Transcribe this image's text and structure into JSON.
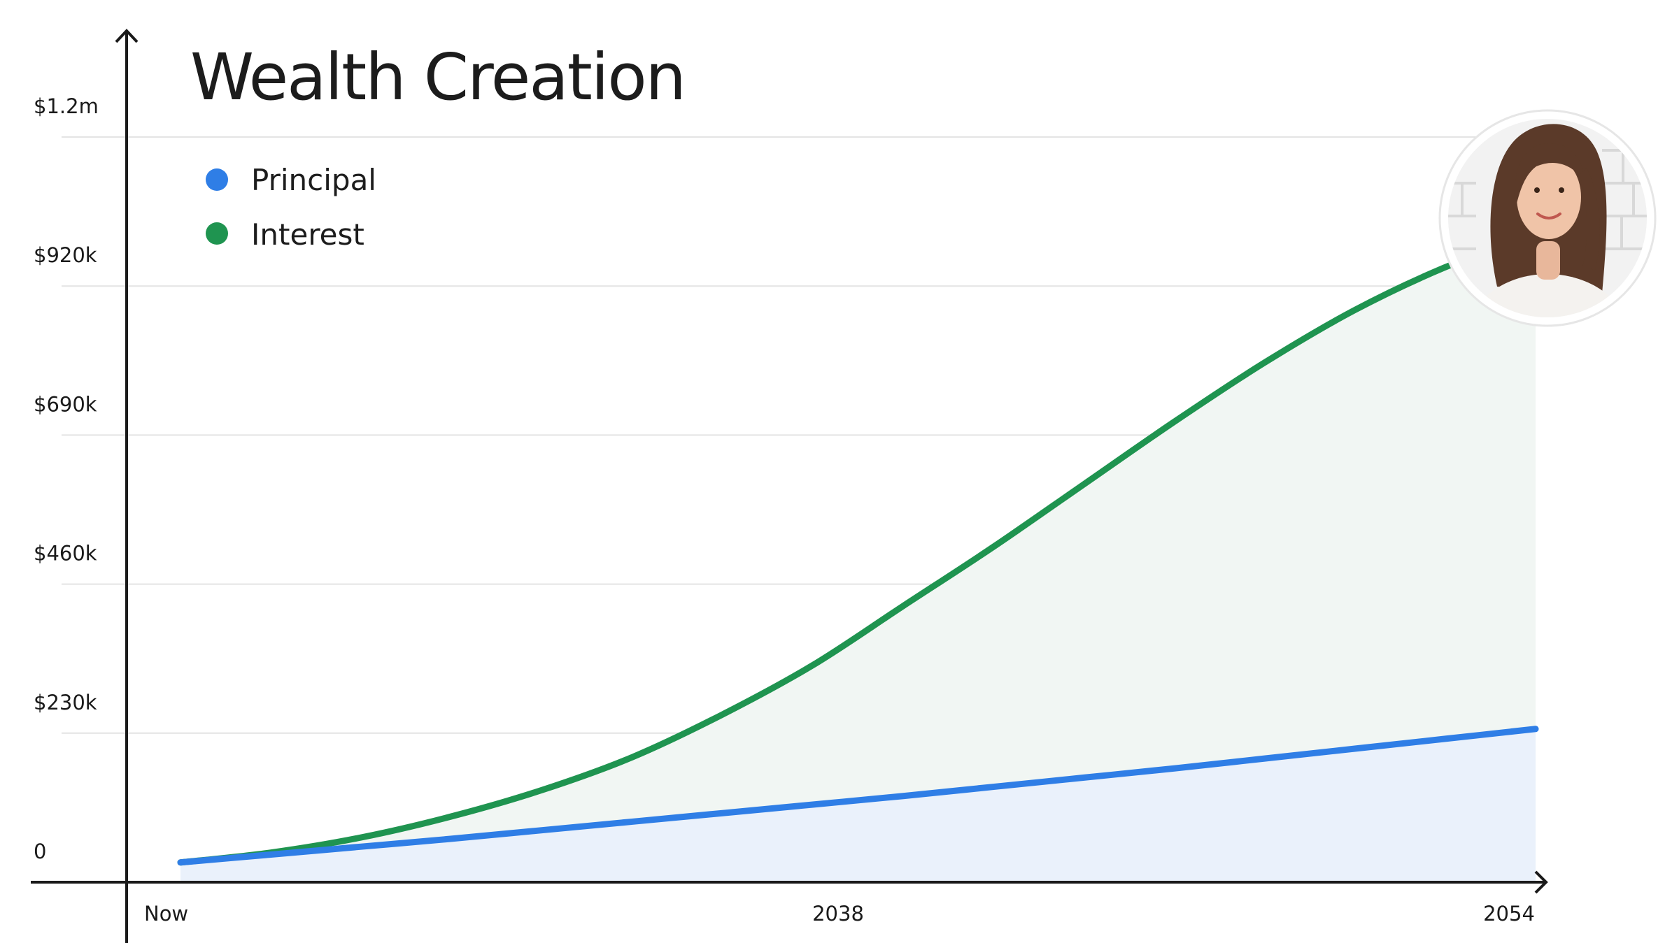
{
  "chart_data": {
    "type": "area",
    "title": "Wealth Creation",
    "xlabel": "",
    "ylabel": "",
    "x_ticks": [
      "Now",
      "2038",
      "2054"
    ],
    "y_ticks": [
      "0",
      "$230k",
      "$460k",
      "$690k",
      "$920k",
      "$1.2m"
    ],
    "x": [
      2024,
      2026,
      2028,
      2030,
      2032,
      2034,
      2036,
      2038,
      2040,
      2042,
      2044,
      2046,
      2048,
      2050,
      2052,
      2054
    ],
    "xlim": [
      2024,
      2054
    ],
    "ylim": [
      0,
      1150000
    ],
    "series": [
      {
        "name": "Principal",
        "color": "#2f7ee6",
        "fill": "#eaf1fb",
        "values": [
          30000,
          42000,
          54000,
          66000,
          79000,
          92000,
          105000,
          118000,
          131000,
          145000,
          159000,
          173000,
          188000,
          203000,
          218000,
          233000
        ]
      },
      {
        "name": "Interest",
        "color": "#1f9450",
        "fill": "#f1f6f3",
        "values": [
          30000,
          45000,
          68000,
          100000,
          140000,
          190000,
          255000,
          330000,
          420000,
          510000,
          605000,
          700000,
          790000,
          870000,
          935000,
          985000
        ]
      }
    ],
    "legend": "top-left",
    "grid": true
  },
  "avatar": {
    "icon": "person-photo-icon"
  }
}
